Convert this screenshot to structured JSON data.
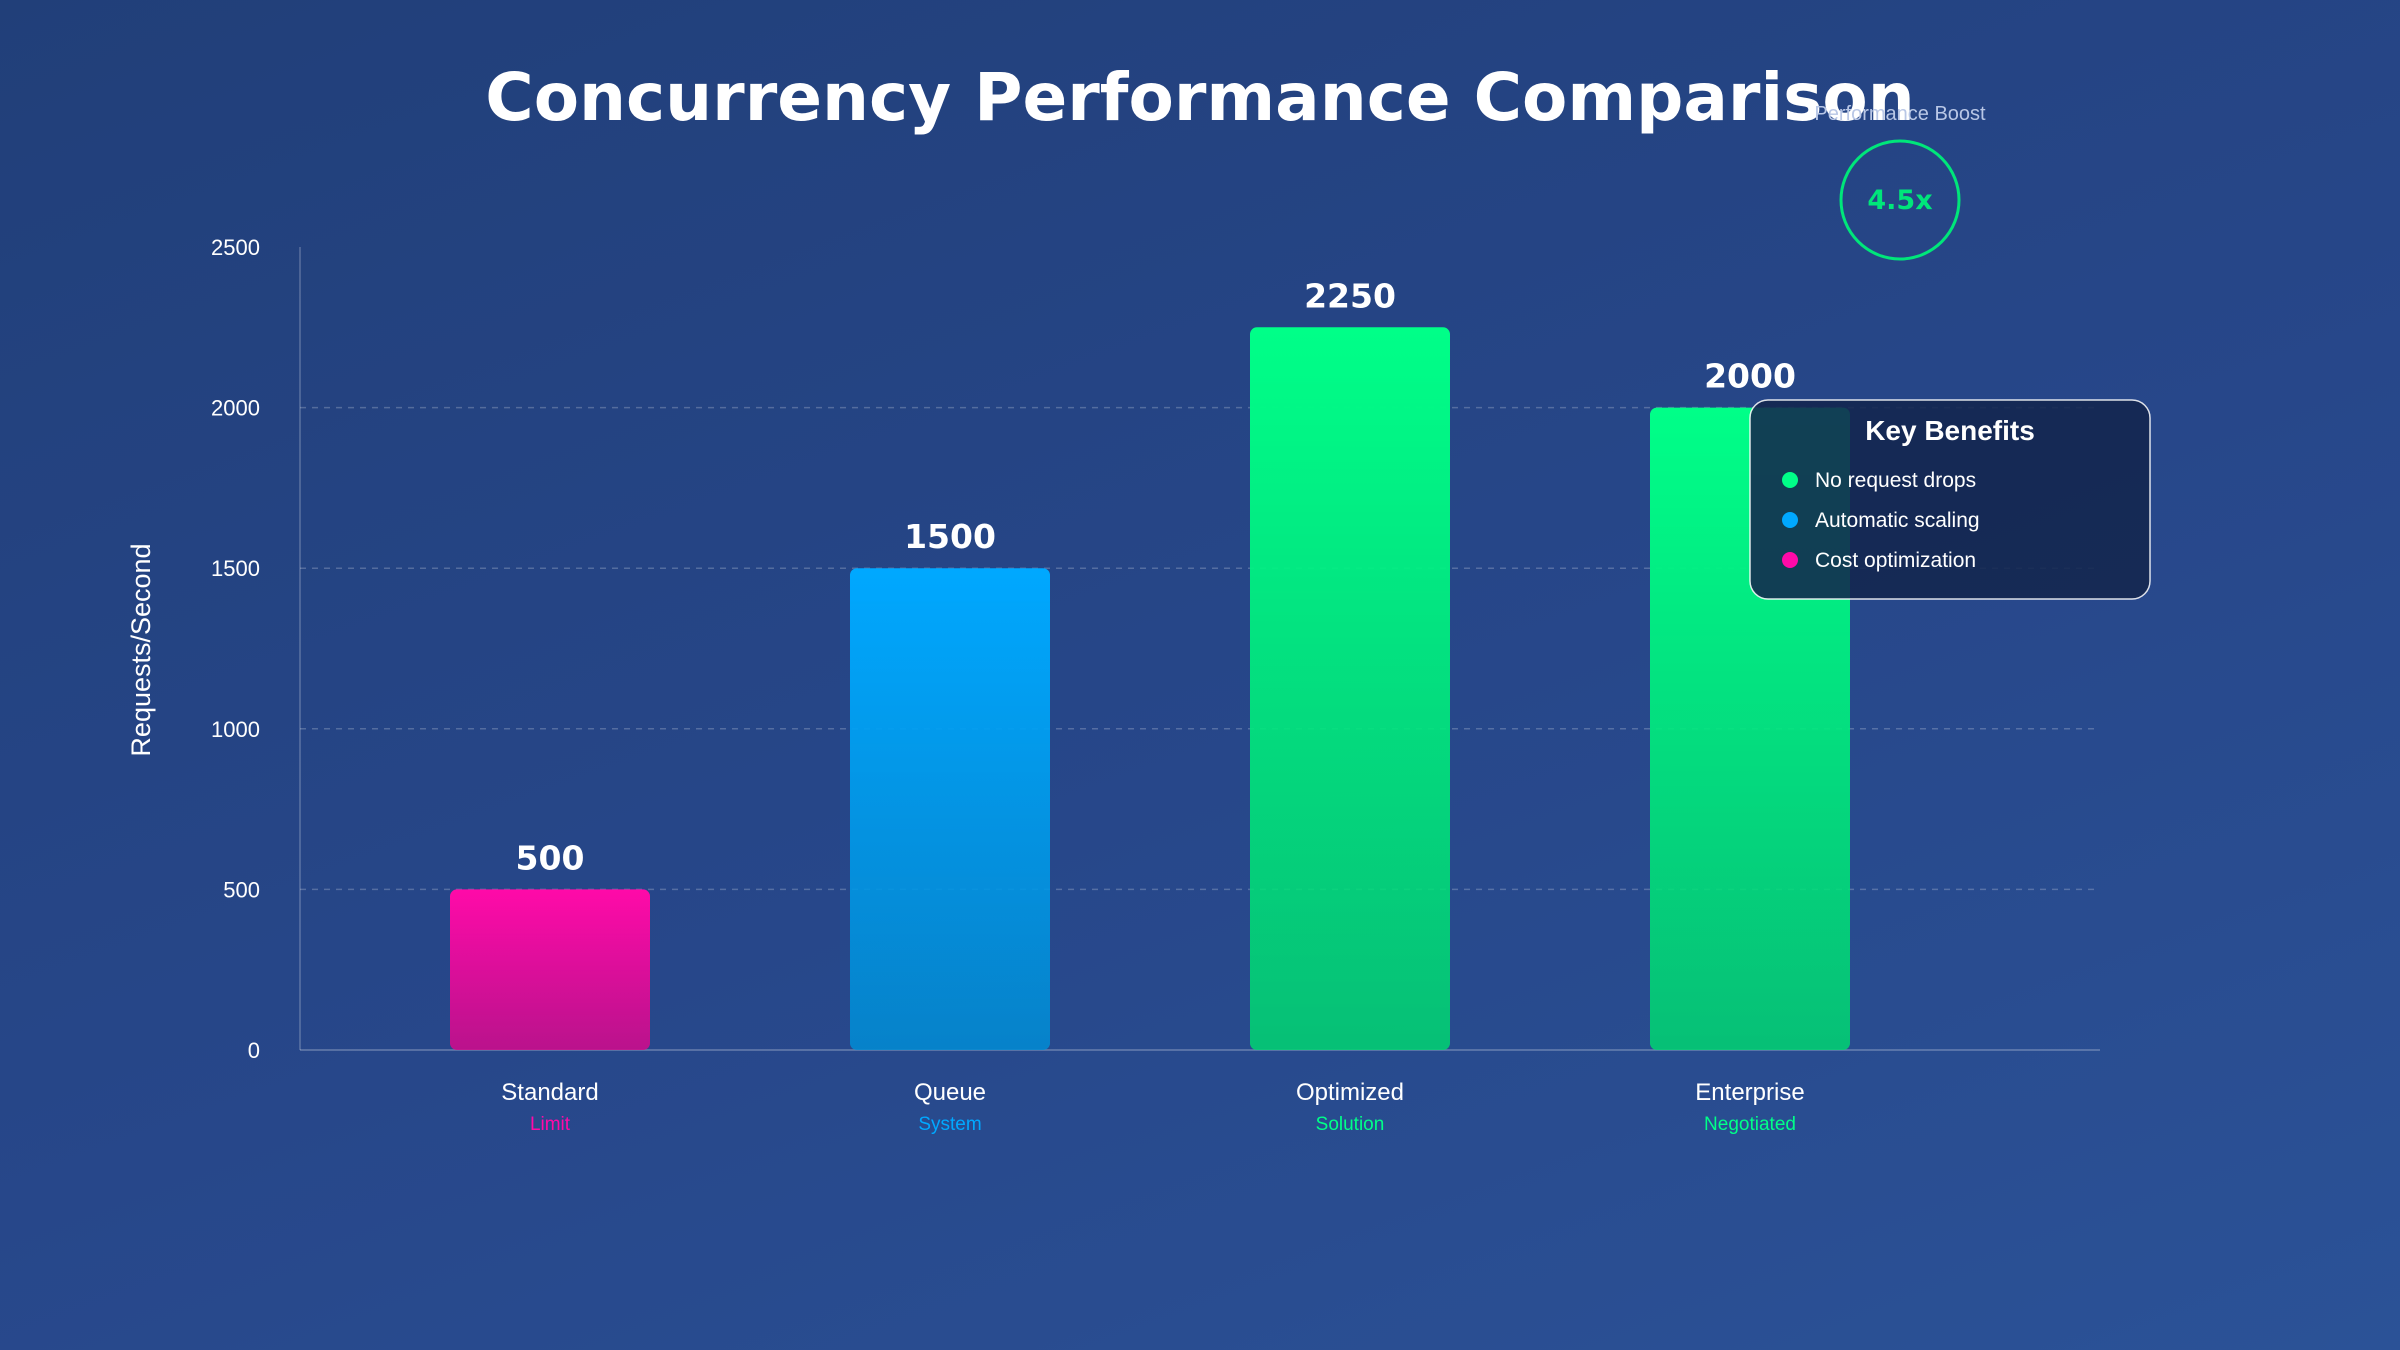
{
  "colors": {
    "background_start": "#213f79",
    "background_end": "#2b5297",
    "standard": "#ff0aa8",
    "queue": "#00a8ff",
    "optimized": "#00ff88",
    "enterprise": "#00ff88",
    "boost": "#00e67a"
  },
  "chart_data": {
    "type": "bar",
    "title": "Concurrency Performance Comparison",
    "xlabel": "",
    "ylabel": "Requests/Second",
    "ylim": [
      0,
      2500
    ],
    "yticks": [
      0,
      500,
      1000,
      1500,
      2000,
      2500
    ],
    "grid": true,
    "categories": [
      "Standard",
      "Queue",
      "Optimized",
      "Enterprise"
    ],
    "subcategories": [
      "Limit",
      "System",
      "Solution",
      "Negotiated"
    ],
    "values": [
      500,
      1500,
      2250,
      2000
    ],
    "bar_colors": [
      "#ff0aa8",
      "#00a8ff",
      "#00ff88",
      "#00ff88"
    ],
    "sub_colors": [
      "#ff0aa8",
      "#00a8ff",
      "#00ff88",
      "#00ff88"
    ],
    "data_labels": [
      "500",
      "1500",
      "2250",
      "2000"
    ]
  },
  "boost": {
    "label": "Performance Boost",
    "value": "4.5x"
  },
  "benefits": {
    "title": "Key Benefits",
    "items": [
      {
        "text": "No request drops",
        "color": "#00ff88"
      },
      {
        "text": "Automatic scaling",
        "color": "#00a8ff"
      },
      {
        "text": "Cost optimization",
        "color": "#ff0aa8"
      }
    ]
  }
}
